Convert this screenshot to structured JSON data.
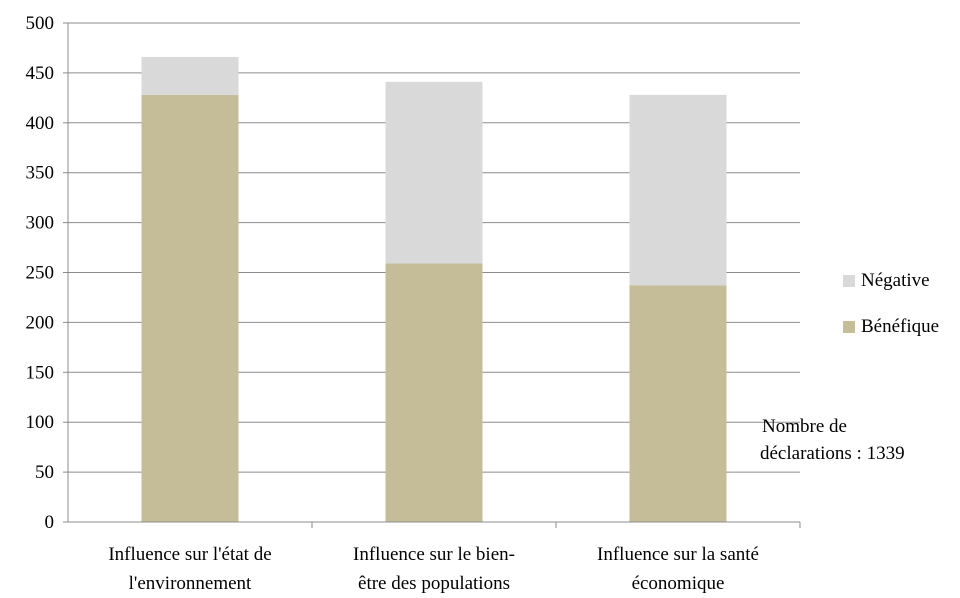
{
  "chart_data": {
    "type": "bar",
    "stacked": true,
    "categories": [
      [
        "Influence sur l'état de",
        "l'environnement"
      ],
      [
        "Influence sur le bien-",
        "être des populations"
      ],
      [
        "Influence sur la santé",
        "économique"
      ]
    ],
    "series": [
      {
        "name": "Bénéfique",
        "values": [
          428,
          259,
          237
        ],
        "color": "#c4bd97"
      },
      {
        "name": "Négative",
        "values": [
          38,
          182,
          191
        ],
        "color": "#d9d9d9"
      }
    ],
    "ylim": [
      0,
      500
    ],
    "yticks": [
      "0",
      "50",
      "100",
      "150",
      "200",
      "250",
      "300",
      "350",
      "400",
      "450",
      "500"
    ],
    "grid": true,
    "legend_position": "right",
    "legend_order": [
      "Négative",
      "Bénéfique"
    ]
  },
  "annotation": {
    "line1": "Nombre de",
    "line2": "déclarations  : 1339"
  }
}
